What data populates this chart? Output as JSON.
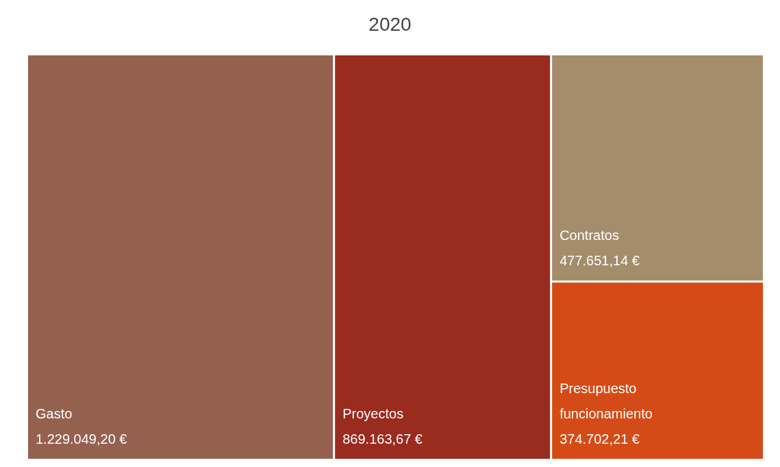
{
  "chart_data": {
    "type": "other",
    "title": "2020",
    "categories": [
      "Gasto",
      "Proyectos",
      "Contratos",
      "Presupuesto funcionamiento"
    ],
    "values": [
      1229049.2,
      869163.67,
      477651.14,
      374702.21
    ],
    "value_labels": [
      "1.229.049,20 €",
      "869.163,67 €",
      "477.651,14 €",
      "374.702,21 €"
    ],
    "colors": [
      "#95614f",
      "#9a2b1f",
      "#a38d6b",
      "#d44b17"
    ]
  }
}
